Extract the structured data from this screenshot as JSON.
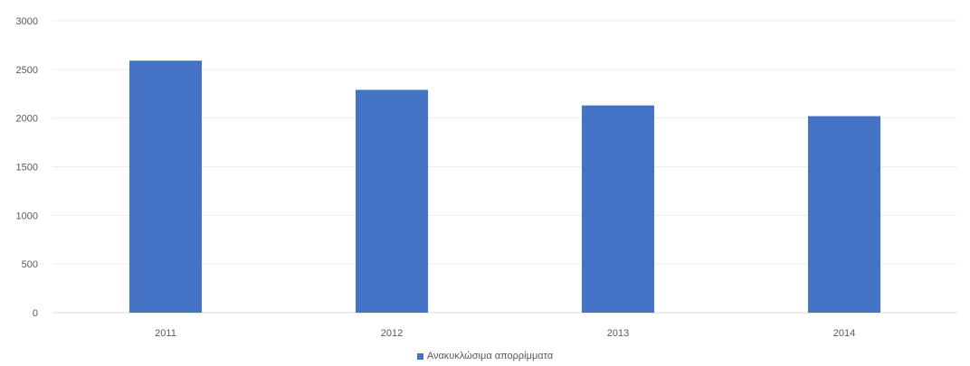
{
  "chart_data": {
    "type": "bar",
    "categories": [
      "2011",
      "2012",
      "2013",
      "2014"
    ],
    "series": [
      {
        "name": "Ανακυκλώσιμα απορρίμματα",
        "values": [
          2590,
          2290,
          2130,
          2020
        ],
        "color": "#4472C4"
      }
    ],
    "ylim": [
      0,
      3000
    ],
    "yticks": [
      0,
      500,
      1000,
      1500,
      2000,
      2500,
      3000
    ],
    "grid": true,
    "legend_position": "bottom"
  }
}
